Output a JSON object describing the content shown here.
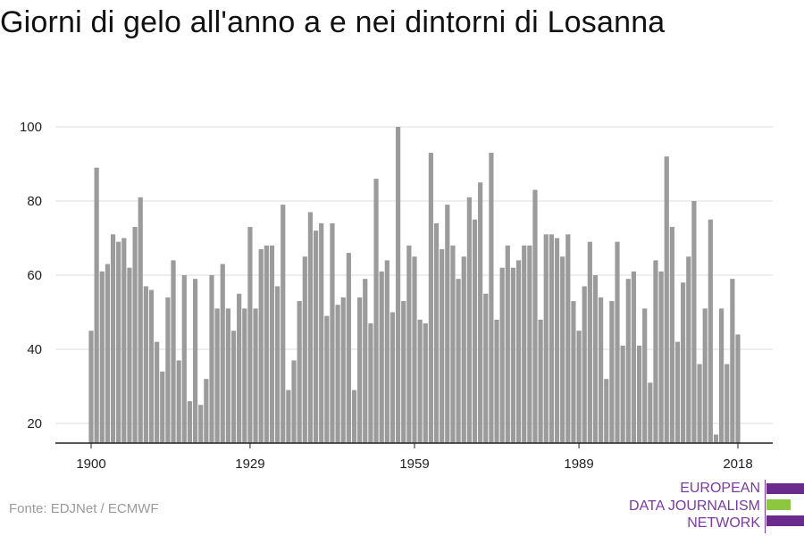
{
  "title": "Giorni di gelo all'anno a e nei dintorni di Losanna",
  "source": "Fonte: EDJNet / ECMWF",
  "logo": {
    "line1": "EUROPEAN",
    "line2": "DATA JOURNALISM",
    "line3": "NETWORK"
  },
  "colors": {
    "bar": "#9b9b9b",
    "grid": "#dcdcdc",
    "axis": "#222222",
    "logo_purple": "#6a2b8c",
    "logo_green": "#8dc63f"
  },
  "chart_data": {
    "type": "bar",
    "title": "Giorni di gelo all'anno a e nei dintorni di Losanna",
    "xlabel": "",
    "ylabel": "",
    "x_start": 1900,
    "x_end": 2018,
    "x_ticks": [
      1900,
      1929,
      1959,
      1989,
      2018
    ],
    "y_ticks": [
      20,
      40,
      60,
      80,
      100
    ],
    "ylim": [
      15,
      103
    ],
    "grid": "horizontal",
    "values": [
      45,
      89,
      61,
      63,
      71,
      69,
      70,
      62,
      73,
      81,
      57,
      56,
      42,
      34,
      54,
      64,
      37,
      60,
      26,
      59,
      25,
      32,
      60,
      51,
      63,
      51,
      45,
      55,
      51,
      73,
      51,
      67,
      68,
      68,
      57,
      79,
      29,
      37,
      53,
      65,
      77,
      72,
      74,
      49,
      74,
      52,
      54,
      66,
      29,
      54,
      59,
      47,
      86,
      61,
      64,
      50,
      100,
      53,
      68,
      65,
      48,
      47,
      93,
      74,
      67,
      79,
      68,
      59,
      65,
      81,
      75,
      85,
      55,
      93,
      48,
      62,
      68,
      62,
      64,
      68,
      68,
      83,
      48,
      71,
      71,
      70,
      65,
      71,
      53,
      45,
      57,
      69,
      60,
      54,
      32,
      53,
      69,
      41,
      59,
      61,
      41,
      51,
      31,
      64,
      61,
      92,
      73,
      42,
      58,
      65,
      80,
      36,
      51,
      75,
      17,
      51,
      36,
      59,
      44
    ]
  }
}
